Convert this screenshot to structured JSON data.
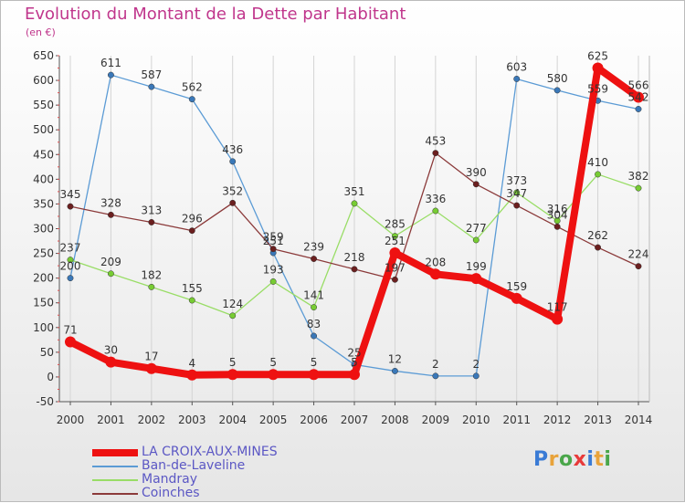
{
  "title": "Evolution du Montant de la Dette par Habitant",
  "unit": "(en €)",
  "logo": {
    "text": "Proxiti",
    "letter_colors": [
      "#3a7bd5",
      "#e8a33b",
      "#4aa64a",
      "#e83a3a",
      "#3a7bd5",
      "#e8a33b",
      "#4aa64a"
    ]
  },
  "chart_data": {
    "type": "line",
    "title": "Evolution du Montant de la Dette par Habitant",
    "ylabel": "(en €)",
    "xlabel": "",
    "x": [
      "2000",
      "2001",
      "2002",
      "2003",
      "2004",
      "2005",
      "2006",
      "2007",
      "2008",
      "2009",
      "2010",
      "2011",
      "2012",
      "2013",
      "2014"
    ],
    "ylim": [
      -50,
      650
    ],
    "yticks": [
      -50,
      0,
      50,
      100,
      150,
      200,
      250,
      300,
      350,
      400,
      450,
      500,
      550,
      600,
      650
    ],
    "grid": "vertical",
    "legend_position": "bottom-left",
    "series": [
      {
        "name": "Ban-de-Laveline",
        "color": "#5b9bd5",
        "marker": "#3a78b8",
        "width": "thin",
        "values": [
          200,
          611,
          587,
          562,
          436,
          251,
          83,
          25,
          12,
          2,
          2,
          603,
          580,
          559,
          542
        ]
      },
      {
        "name": "Mandray",
        "color": "#99dd66",
        "marker": "#77cc33",
        "width": "thin",
        "values": [
          237,
          209,
          182,
          155,
          124,
          193,
          141,
          351,
          285,
          336,
          277,
          373,
          316,
          410,
          382
        ]
      },
      {
        "name": "Coinches",
        "color": "#8b3a3a",
        "marker": "#6b1f1f",
        "width": "thin",
        "values": [
          345,
          328,
          313,
          296,
          352,
          259,
          239,
          218,
          197,
          453,
          390,
          347,
          304,
          262,
          224
        ]
      },
      {
        "name": "LA CROIX-AUX-MINES",
        "color": "#ee1111",
        "marker": "#ee1111",
        "width": "thick",
        "values": [
          71,
          30,
          17,
          4,
          5,
          5,
          5,
          5,
          251,
          208,
          199,
          159,
          117,
          625,
          566
        ]
      }
    ],
    "legend_order": [
      "LA CROIX-AUX-MINES",
      "Ban-de-Laveline",
      "Mandray",
      "Coinches"
    ]
  }
}
